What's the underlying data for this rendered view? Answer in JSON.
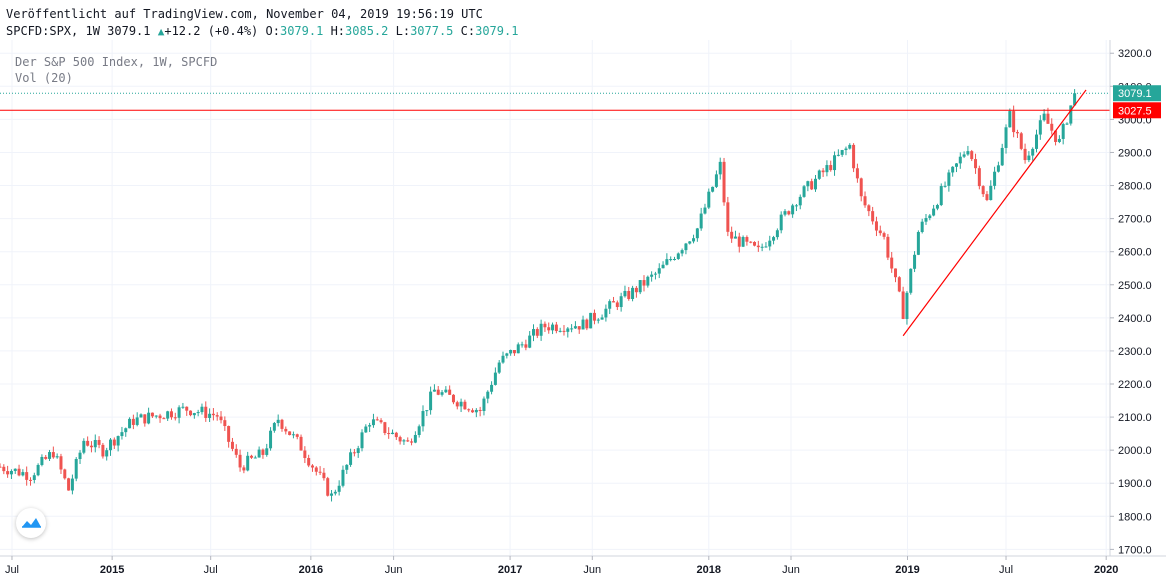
{
  "header": {
    "published": "Veröffentlicht auf TradingView.com, November 04, 2019 19:56:19 UTC",
    "symbol": "SPCFD:SPX, 1W 3079.1",
    "change": "+12.2 (+0.4%)",
    "open_label": "O:",
    "open": "3079.1",
    "high_label": "H:",
    "high": "3085.2",
    "low_label": "L:",
    "low": "3077.5",
    "close_label": "C:",
    "close": "3079.1"
  },
  "legend": {
    "title": "Der S&P 500 Index, 1W, SPCFD",
    "volume": "Vol (20)"
  },
  "colors": {
    "up": "#26a69a",
    "down": "#ef5350",
    "price_line": "#26a69a",
    "level_line": "#ff0000",
    "grid": "#f0f3fa"
  },
  "chart_data": {
    "type": "candlestick",
    "y_ticks": [
      1700,
      1800,
      1900,
      2000,
      2100,
      2200,
      2300,
      2400,
      2500,
      2600,
      2700,
      2800,
      2900,
      3000,
      3100,
      3200
    ],
    "y_tick_labels": [
      "1700.0",
      "1800.0",
      "1900.0",
      "2000.0",
      "2100.0",
      "2200.0",
      "2300.0",
      "2400.0",
      "2500.0",
      "2600.0",
      "2700.0",
      "2800.0",
      "2900.0",
      "3000.0",
      "3100.0",
      "3200.0"
    ],
    "ylim": [
      1680,
      3240
    ],
    "x_ticks": [
      {
        "label": "Jul",
        "date": "2014-07-01",
        "year": false
      },
      {
        "label": "2015",
        "date": "2015-01-01",
        "year": true
      },
      {
        "label": "Jul",
        "date": "2015-07-01",
        "year": false
      },
      {
        "label": "2016",
        "date": "2016-01-01",
        "year": true
      },
      {
        "label": "Jun",
        "date": "2016-06-01",
        "year": false
      },
      {
        "label": "2017",
        "date": "2017-01-01",
        "year": true
      },
      {
        "label": "Jun",
        "date": "2017-06-01",
        "year": false
      },
      {
        "label": "2018",
        "date": "2018-01-01",
        "year": true
      },
      {
        "label": "Jun",
        "date": "2018-06-01",
        "year": false
      },
      {
        "label": "2019",
        "date": "2019-01-01",
        "year": true
      },
      {
        "label": "Jul",
        "date": "2019-07-01",
        "year": false
      },
      {
        "label": "2020",
        "date": "2020-01-01",
        "year": true
      }
    ],
    "xlim": [
      "2014-06-09",
      "2020-01-08"
    ],
    "last_price": {
      "value": 3079.1,
      "label": "3079.1"
    },
    "horizontal_level": {
      "value": 3027.5,
      "label": "3027.5"
    },
    "trendline": {
      "from": {
        "date": "2018-12-24",
        "value": 2346
      },
      "to": {
        "date": "2019-11-25",
        "value": 3089
      }
    },
    "series_monthly_path": [
      [
        "2014-06-09",
        1950
      ],
      [
        "2014-08-04",
        1925
      ],
      [
        "2014-09-15",
        1995
      ],
      [
        "2014-10-13",
        1880
      ],
      [
        "2014-11-10",
        2030
      ],
      [
        "2014-12-15",
        2000
      ],
      [
        "2015-02-09",
        2090
      ],
      [
        "2015-05-18",
        2125
      ],
      [
        "2015-07-13",
        2105
      ],
      [
        "2015-08-24",
        1950
      ],
      [
        "2015-10-05",
        1990
      ],
      [
        "2015-11-02",
        2095
      ],
      [
        "2015-12-14",
        2010
      ],
      [
        "2016-02-08",
        1860
      ],
      [
        "2016-04-18",
        2090
      ],
      [
        "2016-06-27",
        2020
      ],
      [
        "2016-08-15",
        2180
      ],
      [
        "2016-11-07",
        2120
      ],
      [
        "2016-12-12",
        2265
      ],
      [
        "2017-03-06",
        2375
      ],
      [
        "2017-05-15",
        2380
      ],
      [
        "2017-08-07",
        2470
      ],
      [
        "2017-10-02",
        2540
      ],
      [
        "2017-12-11",
        2670
      ],
      [
        "2018-01-22",
        2860
      ],
      [
        "2018-02-05",
        2650
      ],
      [
        "2018-04-02",
        2600
      ],
      [
        "2018-06-11",
        2760
      ],
      [
        "2018-09-17",
        2920
      ],
      [
        "2018-10-08",
        2760
      ],
      [
        "2018-11-19",
        2640
      ],
      [
        "2018-12-24",
        2416
      ],
      [
        "2019-01-21",
        2660
      ],
      [
        "2019-04-22",
        2920
      ],
      [
        "2019-05-27",
        2750
      ],
      [
        "2019-07-08",
        3010
      ],
      [
        "2019-08-05",
        2880
      ],
      [
        "2019-09-09",
        3005
      ],
      [
        "2019-10-07",
        2930
      ],
      [
        "2019-11-04",
        3079.1
      ]
    ]
  }
}
